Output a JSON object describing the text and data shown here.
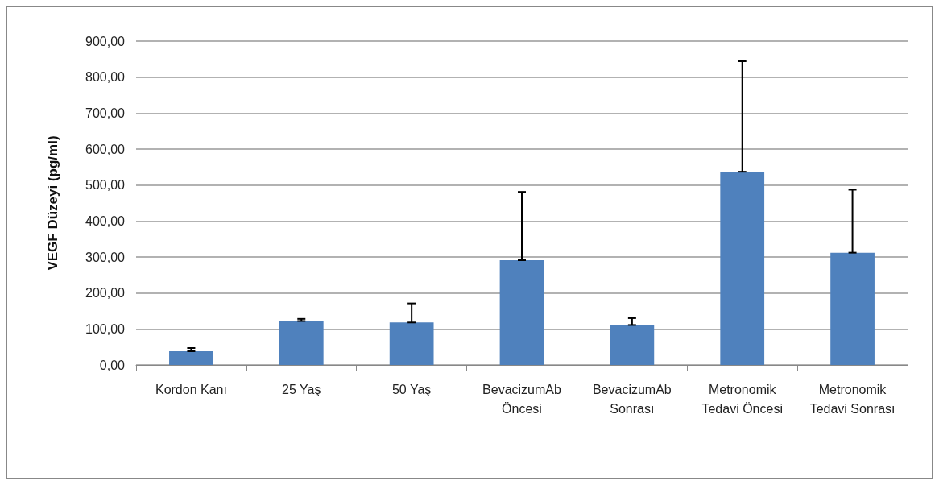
{
  "chart_data": {
    "type": "bar",
    "ylabel": "VEGF Düzeyi (pg/ml)",
    "categories": [
      "Kordon Kanı",
      "25 Yaş",
      "50 Yaş",
      "BevacizumAb\nÖncesi",
      "BevacizumAb\nSonrası",
      "Metronomik\nTedavi Öncesi",
      "Metronomik\nTedavi Sonrası"
    ],
    "values": [
      38,
      122,
      118,
      291,
      111,
      537,
      312
    ],
    "errors": [
      [
        38,
        47
      ],
      [
        122,
        128
      ],
      [
        118,
        171
      ],
      [
        291,
        481
      ],
      [
        111,
        130
      ],
      [
        537,
        844
      ],
      [
        312,
        487
      ]
    ],
    "color": "#4f81bd",
    "ylim": [
      0,
      900
    ],
    "yticks": [
      {
        "value": 0,
        "label": "0,00"
      },
      {
        "value": 100,
        "label": "100,00"
      },
      {
        "value": 200,
        "label": "200,00"
      },
      {
        "value": 300,
        "label": "300,00"
      },
      {
        "value": 400,
        "label": "400,00"
      },
      {
        "value": 500,
        "label": "500,00"
      },
      {
        "value": 600,
        "label": "600,00"
      },
      {
        "value": 700,
        "label": "700,00"
      },
      {
        "value": 800,
        "label": "800,00"
      },
      {
        "value": 900,
        "label": "900,00"
      }
    ],
    "grid": "y"
  }
}
